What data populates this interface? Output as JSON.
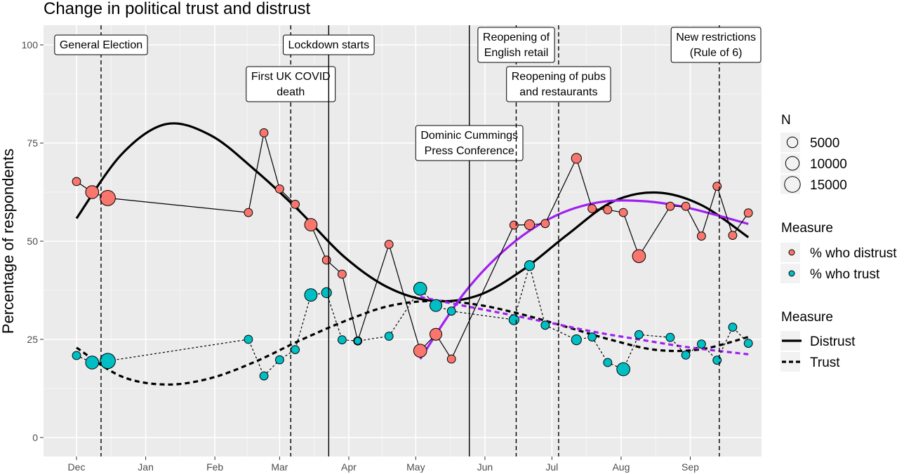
{
  "chart_data": {
    "type": "line",
    "title": "Change in political trust and distrust",
    "xlabel": "",
    "ylabel": "Percentage of respondents",
    "ylim": [
      0,
      100
    ],
    "x_ticks": [
      "Dec",
      "Jan",
      "Feb",
      "Mar",
      "Apr",
      "May",
      "Jun",
      "Jul",
      "Aug",
      "Sep"
    ],
    "y_ticks": [
      0,
      25,
      50,
      75,
      100
    ],
    "grid": true,
    "legend_position": "right",
    "legends": {
      "size": {
        "title": "N",
        "labels": [
          "5000",
          "10000",
          "15000"
        ],
        "values": [
          5000,
          10000,
          15000
        ]
      },
      "points": {
        "title": "Measure",
        "labels": [
          "% who distrust",
          "% who trust"
        ]
      },
      "lines": {
        "title": "Measure",
        "labels": [
          "Distrust",
          "Trust"
        ]
      }
    },
    "colors": {
      "distrust": "#F8766D",
      "trust": "#00BFC4",
      "fit": "#A020F0",
      "panel": "#EBEBEB"
    },
    "series": [
      {
        "name": "% who distrust",
        "x": [
          "2019-12-01",
          "2019-12-08",
          "2019-12-15",
          "2020-02-16",
          "2020-02-23",
          "2020-03-01",
          "2020-03-08",
          "2020-03-15",
          "2020-03-22",
          "2020-03-29",
          "2020-04-05",
          "2020-04-19",
          "2020-05-03",
          "2020-05-10",
          "2020-05-17",
          "2020-06-14",
          "2020-06-21",
          "2020-06-28",
          "2020-07-12",
          "2020-07-19",
          "2020-07-26",
          "2020-08-02",
          "2020-08-09",
          "2020-08-23",
          "2020-08-30",
          "2020-09-06",
          "2020-09-13",
          "2020-09-20",
          "2020-09-27"
        ],
        "y": [
          65.2,
          62.5,
          61.0,
          57.3,
          77.6,
          63.3,
          59.4,
          54.2,
          45.2,
          41.6,
          24.6,
          49.2,
          22.1,
          26.3,
          20.0,
          54.1,
          54.2,
          54.5,
          71.1,
          58.3,
          58.0,
          57.3,
          46.2,
          58.9,
          58.9,
          51.3,
          64.0,
          51.5,
          57.2
        ],
        "n": [
          2000,
          9000,
          14000,
          2000,
          2000,
          2000,
          2000,
          8000,
          2000,
          2000,
          2000,
          2000,
          9000,
          7000,
          2000,
          2000,
          4000,
          2000,
          4000,
          2000,
          2000,
          2000,
          9000,
          2000,
          2000,
          2000,
          2000,
          2000,
          2000
        ]
      },
      {
        "name": "% who trust",
        "x": [
          "2019-12-01",
          "2019-12-08",
          "2019-12-15",
          "2020-02-16",
          "2020-02-23",
          "2020-03-01",
          "2020-03-08",
          "2020-03-15",
          "2020-03-22",
          "2020-03-29",
          "2020-04-05",
          "2020-04-19",
          "2020-05-03",
          "2020-05-10",
          "2020-05-17",
          "2020-06-14",
          "2020-06-21",
          "2020-06-28",
          "2020-07-12",
          "2020-07-19",
          "2020-07-26",
          "2020-08-02",
          "2020-08-09",
          "2020-08-23",
          "2020-08-30",
          "2020-09-06",
          "2020-09-13",
          "2020-09-20",
          "2020-09-27"
        ],
        "y": [
          20.9,
          19.1,
          19.5,
          25.0,
          15.7,
          19.8,
          22.4,
          36.3,
          36.9,
          24.9,
          24.6,
          25.8,
          37.9,
          33.6,
          32.2,
          30.0,
          43.8,
          28.6,
          24.9,
          25.6,
          19.1,
          17.4,
          26.2,
          25.5,
          21.0,
          23.8,
          19.7,
          28.1,
          24.0
        ],
        "n": [
          2000,
          9000,
          14000,
          2000,
          2000,
          2000,
          2000,
          8000,
          4000,
          2000,
          1000,
          2000,
          9000,
          7000,
          2000,
          4000,
          4000,
          2000,
          4000,
          2000,
          2000,
          9000,
          2000,
          2000,
          2000,
          2000,
          2000,
          2000,
          2000
        ]
      }
    ],
    "smooth_lines": [
      {
        "name": "Distrust",
        "x": [
          "2019-12-01",
          "2019-12-21",
          "2020-01-10",
          "2020-01-30",
          "2020-02-19",
          "2020-03-10",
          "2020-03-30",
          "2020-04-19",
          "2020-05-09",
          "2020-05-29",
          "2020-06-18",
          "2020-07-08",
          "2020-07-28",
          "2020-08-17",
          "2020-09-06",
          "2020-09-27"
        ],
        "y": [
          55.8,
          72.0,
          79.8,
          77.0,
          68.1,
          57.6,
          46.0,
          38.1,
          34.8,
          36.2,
          42.7,
          51.7,
          60.0,
          62.4,
          59.2,
          51.0
        ]
      },
      {
        "name": "Trust",
        "x": [
          "2019-12-01",
          "2019-12-21",
          "2020-01-10",
          "2020-01-30",
          "2020-02-19",
          "2020-03-10",
          "2020-03-30",
          "2020-04-19",
          "2020-05-09",
          "2020-05-29",
          "2020-06-18",
          "2020-07-08",
          "2020-07-28",
          "2020-08-17",
          "2020-09-06",
          "2020-09-27"
        ],
        "y": [
          22.9,
          15.6,
          13.5,
          15.1,
          19.3,
          24.7,
          29.6,
          33.5,
          34.8,
          33.8,
          31.3,
          28.1,
          24.8,
          22.3,
          22.5,
          25.6
        ]
      },
      {
        "name": "Distrust fit (May–Sep)",
        "x": [
          "2020-05-03",
          "2020-05-23",
          "2020-06-12",
          "2020-07-02",
          "2020-07-22",
          "2020-08-11",
          "2020-08-31",
          "2020-09-27"
        ],
        "y": [
          20.0,
          37.0,
          48.8,
          56.3,
          59.9,
          60.2,
          58.5,
          54.4
        ]
      },
      {
        "name": "Trust fit (May–Sep)",
        "x": [
          "2020-05-03",
          "2020-05-23",
          "2020-06-12",
          "2020-07-02",
          "2020-07-22",
          "2020-08-11",
          "2020-08-31",
          "2020-09-27"
        ],
        "y": [
          35.8,
          33.5,
          31.3,
          29.0,
          26.7,
          24.8,
          23.0,
          21.2
        ]
      }
    ],
    "events": [
      {
        "date": "2019-12-12",
        "label": [
          "General Election"
        ],
        "line": "dashed",
        "label_y": 100
      },
      {
        "date": "2020-03-06",
        "label": [
          "First UK COVID",
          "death"
        ],
        "line": "dashed",
        "label_y": 90
      },
      {
        "date": "2020-03-23",
        "label": [
          "Lockdown starts"
        ],
        "line": "solid",
        "label_y": 100
      },
      {
        "date": "2020-05-25",
        "label": [
          "Dominic Cummings",
          "Press Conference"
        ],
        "line": "solid",
        "label_y": 75
      },
      {
        "date": "2020-06-15",
        "label": [
          "Reopening of",
          "English retail"
        ],
        "line": "dashed",
        "label_y": 100
      },
      {
        "date": "2020-07-04",
        "label": [
          "Reopening of pubs",
          "and restaurants"
        ],
        "line": "dashed",
        "label_y": 90
      },
      {
        "date": "2020-09-14",
        "label": [
          "New restrictions",
          "(Rule of 6)"
        ],
        "line": "dashed",
        "label_y": 100
      }
    ]
  }
}
